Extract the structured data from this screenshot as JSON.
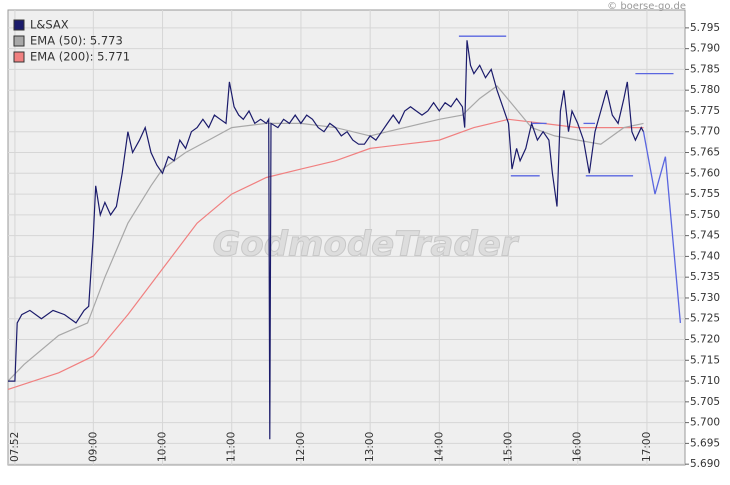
{
  "chart_data": {
    "type": "line",
    "copyright": "© boerse-go.de",
    "watermark": "GodmodeTrader",
    "xlim": [
      "07:46",
      "17:33"
    ],
    "xticks": [
      "07:52",
      "09:00",
      "10:00",
      "11:00",
      "12:00",
      "13:00",
      "14:00",
      "15:00",
      "16:00",
      "17:00"
    ],
    "ylim": [
      5.6898,
      5.7993
    ],
    "yticks": [
      {
        "value": 5.69,
        "label": "5.690"
      },
      5.695,
      {
        "value": 5.7,
        "label": "5.700"
      },
      5.705,
      {
        "value": 5.71,
        "label": "5.710"
      },
      5.715,
      {
        "value": 5.72,
        "label": "5.720"
      },
      5.725,
      {
        "value": 5.73,
        "label": "5.730"
      },
      5.735,
      {
        "value": 5.74,
        "label": "5.740"
      },
      5.745,
      {
        "value": 5.75,
        "label": "5.750"
      },
      5.755,
      {
        "value": 5.76,
        "label": "5.760"
      },
      5.765,
      {
        "value": 5.77,
        "label": "5.770"
      },
      5.775,
      {
        "value": 5.78,
        "label": "5.780"
      },
      5.785,
      {
        "value": 5.79,
        "label": "5.790"
      },
      5.795
    ],
    "grid": true,
    "legend": "top-left",
    "series": [
      {
        "name": "L&SAX",
        "color": "#1b1b6b",
        "x": [
          "07:46",
          "07:52",
          "07:54",
          "07:58",
          "08:05",
          "08:15",
          "08:25",
          "08:35",
          "08:45",
          "08:52",
          "08:56",
          "09:00",
          "09:02",
          "09:06",
          "09:10",
          "09:15",
          "09:20",
          "09:25",
          "09:30",
          "09:34",
          "09:40",
          "09:45",
          "09:50",
          "09:55",
          "10:00",
          "10:05",
          "10:10",
          "10:15",
          "10:20",
          "10:25",
          "10:30",
          "10:35",
          "10:40",
          "10:45",
          "10:50",
          "10:55",
          "10:58",
          "11:02",
          "11:06",
          "11:10",
          "11:15",
          "11:20",
          "11:25",
          "11:30",
          "11:32",
          "11:33",
          "11:34",
          "11:40",
          "11:45",
          "11:50",
          "11:55",
          "12:00",
          "12:05",
          "12:10",
          "12:15",
          "12:20",
          "12:25",
          "12:30",
          "12:35",
          "12:40",
          "12:45",
          "12:50",
          "12:55",
          "13:00",
          "13:05",
          "13:10",
          "13:15",
          "13:20",
          "13:25",
          "13:30",
          "13:35",
          "13:40",
          "13:45",
          "13:50",
          "13:55",
          "14:00",
          "14:05",
          "14:10",
          "14:15",
          "14:20",
          "14:22",
          "14:24",
          "14:27",
          "14:30",
          "14:35",
          "14:40",
          "14:45",
          "14:50",
          "14:55",
          "15:00",
          "15:03",
          "15:07",
          "15:10",
          "15:15",
          "15:20",
          "15:25",
          "15:30",
          "15:35",
          "15:38",
          "15:42",
          "15:45",
          "15:48",
          "15:52",
          "15:55",
          "16:00",
          "16:05",
          "16:10",
          "16:15",
          "16:20",
          "16:25",
          "16:30",
          "16:35",
          "16:40",
          "16:43",
          "16:47",
          "16:50",
          "16:55",
          "16:57"
        ],
        "values": [
          5.71,
          5.71,
          5.724,
          5.726,
          5.727,
          5.725,
          5.727,
          5.726,
          5.724,
          5.727,
          5.728,
          5.745,
          5.757,
          5.75,
          5.753,
          5.75,
          5.752,
          5.76,
          5.77,
          5.765,
          5.768,
          5.771,
          5.765,
          5.762,
          5.76,
          5.764,
          5.763,
          5.768,
          5.766,
          5.77,
          5.771,
          5.773,
          5.771,
          5.774,
          5.773,
          5.772,
          5.782,
          5.776,
          5.774,
          5.773,
          5.775,
          5.772,
          5.773,
          5.772,
          5.773,
          5.696,
          5.772,
          5.771,
          5.773,
          5.772,
          5.774,
          5.772,
          5.774,
          5.773,
          5.771,
          5.77,
          5.772,
          5.771,
          5.769,
          5.77,
          5.768,
          5.767,
          5.767,
          5.769,
          5.768,
          5.77,
          5.772,
          5.774,
          5.772,
          5.775,
          5.776,
          5.775,
          5.774,
          5.775,
          5.777,
          5.775,
          5.777,
          5.776,
          5.778,
          5.776,
          5.771,
          5.792,
          5.786,
          5.784,
          5.786,
          5.783,
          5.785,
          5.78,
          5.776,
          5.772,
          5.761,
          5.766,
          5.763,
          5.766,
          5.772,
          5.768,
          5.77,
          5.768,
          5.76,
          5.752,
          5.775,
          5.78,
          5.77,
          5.775,
          5.772,
          5.768,
          5.76,
          5.77,
          5.775,
          5.78,
          5.774,
          5.772,
          5.778,
          5.782,
          5.77,
          5.768,
          5.771,
          5.77
        ]
      },
      {
        "name": "EMA (50): 5.773",
        "color": "#a8a8a8",
        "x": [
          "07:46",
          "08:00",
          "08:30",
          "08:55",
          "09:10",
          "09:30",
          "09:50",
          "10:00",
          "10:20",
          "10:40",
          "11:00",
          "11:30",
          "12:00",
          "12:30",
          "13:00",
          "13:30",
          "14:00",
          "14:20",
          "14:35",
          "14:50",
          "15:05",
          "15:20",
          "15:40",
          "16:00",
          "16:20",
          "16:40",
          "16:57"
        ],
        "values": [
          5.71,
          5.714,
          5.721,
          5.724,
          5.735,
          5.748,
          5.757,
          5.761,
          5.765,
          5.768,
          5.771,
          5.772,
          5.772,
          5.771,
          5.769,
          5.771,
          5.773,
          5.774,
          5.778,
          5.781,
          5.776,
          5.771,
          5.769,
          5.768,
          5.767,
          5.771,
          5.772
        ]
      },
      {
        "name": "EMA (200): 5.771",
        "color": "#f08080",
        "x": [
          "07:46",
          "08:30",
          "09:00",
          "09:30",
          "10:00",
          "10:30",
          "11:00",
          "11:30",
          "12:00",
          "12:30",
          "13:00",
          "13:30",
          "14:00",
          "14:30",
          "15:00",
          "15:30",
          "16:00",
          "16:30",
          "16:57"
        ],
        "values": [
          5.708,
          5.712,
          5.716,
          5.726,
          5.737,
          5.748,
          5.755,
          5.759,
          5.761,
          5.763,
          5.766,
          5.767,
          5.768,
          5.771,
          5.773,
          5.772,
          5.771,
          5.771,
          5.771
        ]
      }
    ],
    "drawings": [
      {
        "color": "#5a66e0",
        "x": [
          "14:17",
          "14:58"
        ],
        "values": [
          5.793,
          5.793
        ]
      },
      {
        "color": "#5a66e0",
        "x": [
          "15:02",
          "15:27"
        ],
        "values": [
          5.7594,
          5.7594
        ]
      },
      {
        "color": "#5a66e0",
        "x": [
          "15:20",
          "15:33"
        ],
        "values": [
          5.772,
          5.772
        ]
      },
      {
        "color": "#5a66e0",
        "x": [
          "16:05",
          "16:15"
        ],
        "values": [
          5.772,
          5.772
        ]
      },
      {
        "color": "#5a66e0",
        "x": [
          "16:07",
          "16:48"
        ],
        "values": [
          5.7594,
          5.7594
        ]
      },
      {
        "color": "#5a66e0",
        "x": [
          "16:50",
          "17:23"
        ],
        "values": [
          5.784,
          5.784
        ]
      },
      {
        "color": "#5a66e0",
        "x": [
          "16:57",
          "17:07",
          "17:16",
          "17:29"
        ],
        "values": [
          5.77,
          5.755,
          5.764,
          5.724
        ]
      }
    ]
  }
}
